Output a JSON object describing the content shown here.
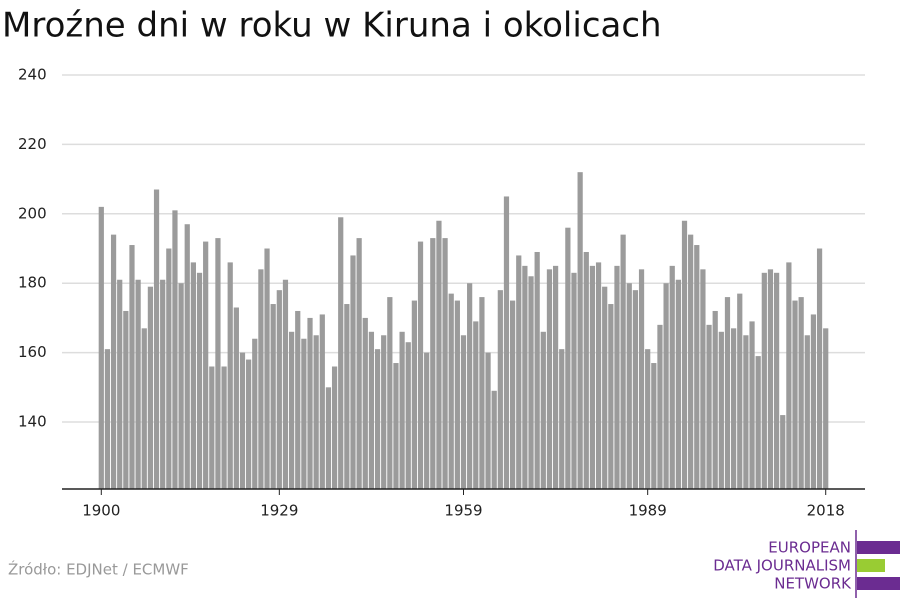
{
  "chart_data": {
    "type": "bar",
    "title": "Mroźne dni w roku w Kiruna i okolicach",
    "source": "Źródło: EDJNet / ECMWF",
    "logo": [
      "EUROPEAN",
      "DATA JOURNALISM",
      "NETWORK"
    ],
    "color": "#9b9b9b",
    "x": [
      1900,
      1901,
      1902,
      1903,
      1904,
      1905,
      1906,
      1907,
      1908,
      1909,
      1910,
      1911,
      1912,
      1913,
      1914,
      1915,
      1916,
      1917,
      1918,
      1919,
      1920,
      1921,
      1922,
      1923,
      1924,
      1925,
      1926,
      1927,
      1928,
      1929,
      1930,
      1931,
      1932,
      1933,
      1934,
      1935,
      1936,
      1937,
      1938,
      1939,
      1940,
      1941,
      1942,
      1943,
      1944,
      1945,
      1946,
      1947,
      1948,
      1949,
      1950,
      1951,
      1952,
      1953,
      1954,
      1955,
      1956,
      1957,
      1958,
      1959,
      1960,
      1961,
      1962,
      1963,
      1964,
      1965,
      1966,
      1967,
      1968,
      1969,
      1970,
      1971,
      1972,
      1973,
      1974,
      1975,
      1976,
      1977,
      1978,
      1979,
      1980,
      1981,
      1982,
      1983,
      1984,
      1985,
      1986,
      1987,
      1988,
      1989,
      1990,
      1991,
      1992,
      1993,
      1994,
      1995,
      1996,
      1997,
      1998,
      1999,
      2000,
      2001,
      2002,
      2003,
      2004,
      2005,
      2006,
      2007,
      2008,
      2009,
      2010,
      2011,
      2012,
      2013,
      2014,
      2015,
      2016,
      2017,
      2018
    ],
    "values": [
      202,
      161,
      194,
      181,
      172,
      191,
      181,
      167,
      179,
      207,
      181,
      190,
      201,
      180,
      197,
      186,
      183,
      192,
      156,
      193,
      156,
      186,
      173,
      160,
      158,
      164,
      184,
      190,
      174,
      178,
      181,
      166,
      172,
      164,
      170,
      165,
      171,
      150,
      156,
      199,
      174,
      188,
      193,
      170,
      166,
      161,
      165,
      176,
      157,
      166,
      163,
      175,
      192,
      160,
      193,
      198,
      193,
      177,
      175,
      165,
      180,
      169,
      176,
      160,
      149,
      178,
      205,
      175,
      188,
      185,
      182,
      189,
      166,
      184,
      185,
      161,
      196,
      183,
      212,
      189,
      185,
      186,
      179,
      174,
      185,
      194,
      180,
      178,
      184,
      161,
      157,
      168,
      180,
      185,
      181,
      198,
      194,
      191,
      184,
      168,
      172,
      166,
      176,
      167,
      177,
      165,
      169,
      159,
      183,
      184,
      183,
      142,
      186,
      175,
      176,
      165,
      171,
      190,
      167
    ],
    "xlim": [
      1893.6,
      2024.4
    ],
    "xticks": [
      1900,
      1929,
      1959,
      1989,
      2018
    ],
    "ylim": [
      120.7,
      240
    ],
    "yticks": [
      140,
      160,
      180,
      200,
      220,
      240
    ],
    "grid": true
  }
}
